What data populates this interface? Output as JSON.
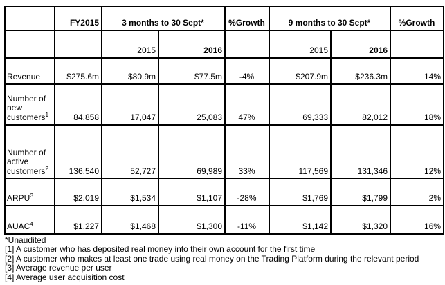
{
  "table": {
    "header": {
      "fy2015": "FY2015",
      "three_months": "3 months to 30 Sept*",
      "growth_q": "%Growth",
      "nine_months": "9 months to 30 Sept*",
      "growth_9m": "%Growth",
      "sub_q_2015": "2015",
      "sub_q_2016": "2016",
      "sub_9m_2015": "2015",
      "sub_9m_2016": "2016"
    },
    "rows": [
      {
        "label": "Revenue",
        "sup": "",
        "fy2015": "$275.6m",
        "q_2015": "$80.9m",
        "q_2016": "$77.5m",
        "q_growth": "-4%",
        "m9_2015": "$207.9m",
        "m9_2016": "$236.3m",
        "m9_growth": "14%"
      },
      {
        "label": "Number of new customers",
        "sup": "1",
        "fy2015": "84,858",
        "q_2015": "17,047",
        "q_2016": "25,083",
        "q_growth": "47%",
        "m9_2015": "69,333",
        "m9_2016": "82,012",
        "m9_growth": "18%"
      },
      {
        "label": "Number of active customers",
        "sup": "2",
        "fy2015": "136,540",
        "q_2015": "52,727",
        "q_2016": "69,989",
        "q_growth": "33%",
        "m9_2015": "117,569",
        "m9_2016": "131,346",
        "m9_growth": "12%"
      },
      {
        "label": "ARPU",
        "sup": "3",
        "fy2015": "$2,019",
        "q_2015": "$1,534",
        "q_2016": "$1,107",
        "q_growth": "-28%",
        "m9_2015": "$1,769",
        "m9_2016": "$1,799",
        "m9_growth": "2%"
      },
      {
        "label": "AUAC",
        "sup": "4",
        "fy2015": "$1,227",
        "q_2015": "$1,468",
        "q_2016": "$1,300",
        "q_growth": "-11%",
        "m9_2015": "$1,142",
        "m9_2016": "$1,320",
        "m9_growth": "16%"
      }
    ]
  },
  "footnotes": [
    "*Unaudited",
    "[1] A customer who has deposited real money into their own account for the first time",
    "[2] A customer who makes at least one trade using real money on the Trading Platform during the relevant period",
    "[3] Average revenue per user",
    "[4] Average user acquisition cost"
  ],
  "colors": {
    "border": "#000000",
    "text": "#000000",
    "background": "#ffffff"
  }
}
